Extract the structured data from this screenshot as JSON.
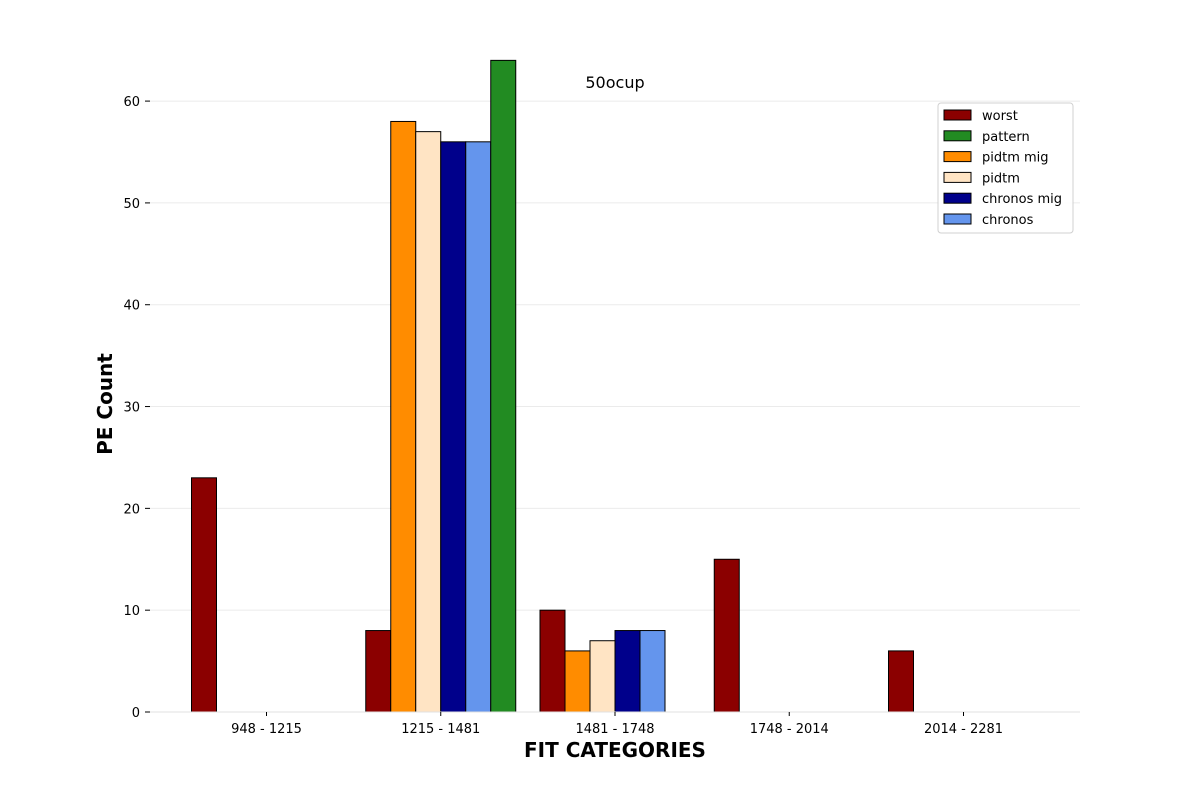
{
  "chart_data": {
    "type": "bar",
    "title": "50ocup",
    "xlabel": "FIT CATEGORIES",
    "ylabel": "PE Count",
    "categories": [
      "948 - 1215",
      "1215 - 1481",
      "1481 - 1748",
      "1748 - 2014",
      "2014 - 2281"
    ],
    "series": [
      {
        "name": "worst",
        "color": "#8b0000",
        "values": [
          23,
          8,
          10,
          15,
          6
        ]
      },
      {
        "name": "pidtm mig",
        "color": "#ff8c00",
        "values": [
          0,
          58,
          6,
          0,
          0
        ]
      },
      {
        "name": "pidtm",
        "color": "#ffe4c4",
        "values": [
          0,
          57,
          7,
          0,
          0
        ]
      },
      {
        "name": "chronos mig",
        "color": "#00008b",
        "values": [
          0,
          56,
          8,
          0,
          0
        ]
      },
      {
        "name": "chronos",
        "color": "#6495ed",
        "values": [
          0,
          56,
          8,
          0,
          0
        ]
      },
      {
        "name": "pattern",
        "color": "#228b22",
        "values": [
          0,
          64,
          0,
          0,
          0
        ]
      }
    ],
    "legend_order": [
      "worst",
      "pattern",
      "pidtm mig",
      "pidtm",
      "chronos mig",
      "chronos"
    ],
    "ylim": [
      0,
      66
    ],
    "yticks": [
      0,
      10,
      20,
      30,
      40,
      50,
      60
    ],
    "grid": true,
    "legend_position": "top-right"
  }
}
